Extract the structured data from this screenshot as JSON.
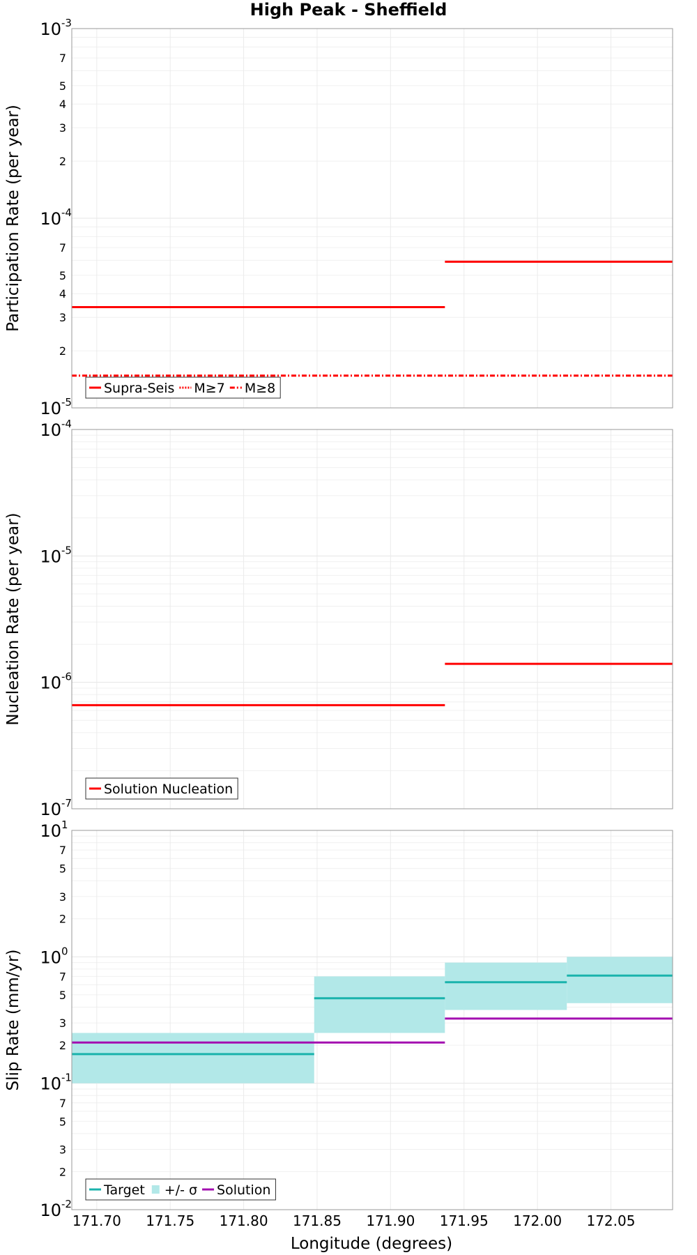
{
  "figure": {
    "title": "High Peak - Sheffield",
    "xlabel": "Longitude (degrees)"
  },
  "chart_data": [
    {
      "type": "line",
      "step": true,
      "ylabel": "Participation Rate (per year)",
      "yscale": "log",
      "ylim": [
        1e-05,
        0.001
      ],
      "xlim": [
        171.683,
        172.092
      ],
      "xticks": [
        171.7,
        171.75,
        171.8,
        171.85,
        171.9,
        171.95,
        172.0,
        172.05
      ],
      "xtick_labels": [
        "171.70",
        "171.75",
        "171.80",
        "171.85",
        "171.90",
        "171.95",
        "172.00",
        "172.05"
      ],
      "y_decade_labels": [
        {
          "base": "10",
          "exp": "-5"
        },
        {
          "base": "10",
          "exp": "-4"
        },
        {
          "base": "10",
          "exp": "-3"
        }
      ],
      "y_minor_labels": [
        "2",
        "3",
        "4",
        "5",
        "7"
      ],
      "series": [
        {
          "name": "Supra-Seis",
          "style": "solid",
          "color": "#ff0000",
          "segments": [
            {
              "x": [
                171.683,
                171.937
              ],
              "y": 3.4e-05
            },
            {
              "x": [
                171.937,
                172.092
              ],
              "y": 5.9e-05
            }
          ]
        },
        {
          "name": "M≥7",
          "style": "dotted",
          "color": "#ff0000",
          "segments": [
            {
              "x": [
                171.683,
                171.937
              ],
              "y": 3.4e-05
            }
          ]
        },
        {
          "name": "M≥8",
          "style": "dashdot",
          "color": "#ff0000",
          "segments": [
            {
              "x": [
                171.683,
                172.092
              ],
              "y": 1.48e-05
            }
          ]
        }
      ],
      "legend": [
        "Supra-Seis",
        "M≥7",
        "M≥8"
      ],
      "legend_position": "bottom-left"
    },
    {
      "type": "line",
      "step": true,
      "ylabel": "Nucleation Rate (per year)",
      "yscale": "log",
      "ylim": [
        1e-07,
        0.0001
      ],
      "xlim": [
        171.683,
        172.092
      ],
      "xticks": [
        171.7,
        171.75,
        171.8,
        171.85,
        171.9,
        171.95,
        172.0,
        172.05
      ],
      "y_decade_labels": [
        {
          "base": "10",
          "exp": "-7"
        },
        {
          "base": "10",
          "exp": "-6"
        },
        {
          "base": "10",
          "exp": "-5"
        },
        {
          "base": "10",
          "exp": "-4"
        }
      ],
      "y_minor_labels": [],
      "series": [
        {
          "name": "Solution Nucleation",
          "style": "solid",
          "color": "#ff0000",
          "segments": [
            {
              "x": [
                171.683,
                171.937
              ],
              "y": 6.6e-07
            },
            {
              "x": [
                171.937,
                172.092
              ],
              "y": 1.4e-06
            }
          ]
        }
      ],
      "legend": [
        "Solution Nucleation"
      ],
      "legend_position": "bottom-left"
    },
    {
      "type": "line",
      "step": true,
      "ylabel": "Slip Rate (mm/yr)",
      "yscale": "log",
      "ylim": [
        0.01,
        10
      ],
      "xlim": [
        171.683,
        172.092
      ],
      "xticks": [
        171.7,
        171.75,
        171.8,
        171.85,
        171.9,
        171.95,
        172.0,
        172.05
      ],
      "xtick_labels": [
        "171.70",
        "171.75",
        "171.80",
        "171.85",
        "171.90",
        "171.95",
        "172.00",
        "172.05"
      ],
      "y_decade_labels": [
        {
          "base": "10",
          "exp": "-2"
        },
        {
          "base": "10",
          "exp": "-1"
        },
        {
          "base": "10",
          "exp": "0"
        },
        {
          "base": "10",
          "exp": "1"
        }
      ],
      "y_minor_labels": [
        "2",
        "3",
        "5",
        "7"
      ],
      "bands": [
        {
          "name": "+/- σ",
          "color": "#b2e8e8",
          "segments": [
            {
              "x": [
                171.683,
                171.848
              ],
              "lo": 0.1,
              "hi": 0.25
            },
            {
              "x": [
                171.848,
                171.937
              ],
              "lo": 0.25,
              "hi": 0.7
            },
            {
              "x": [
                171.937,
                172.02
              ],
              "lo": 0.38,
              "hi": 0.9
            },
            {
              "x": [
                172.02,
                172.092
              ],
              "lo": 0.43,
              "hi": 1.0
            }
          ]
        }
      ],
      "series": [
        {
          "name": "Target",
          "style": "solid",
          "color": "#1ab3ac",
          "segments": [
            {
              "x": [
                171.683,
                171.848
              ],
              "y": 0.17
            },
            {
              "x": [
                171.848,
                171.937
              ],
              "y": 0.47
            },
            {
              "x": [
                171.937,
                172.02
              ],
              "y": 0.63
            },
            {
              "x": [
                172.02,
                172.092
              ],
              "y": 0.71
            }
          ]
        },
        {
          "name": "Solution",
          "style": "solid",
          "color": "#a30fb0",
          "segments": [
            {
              "x": [
                171.683,
                171.937
              ],
              "y": 0.21
            },
            {
              "x": [
                171.937,
                172.092
              ],
              "y": 0.325
            }
          ]
        }
      ],
      "legend": [
        "Target",
        "+/- σ",
        "Solution"
      ],
      "legend_position": "bottom-left"
    }
  ]
}
